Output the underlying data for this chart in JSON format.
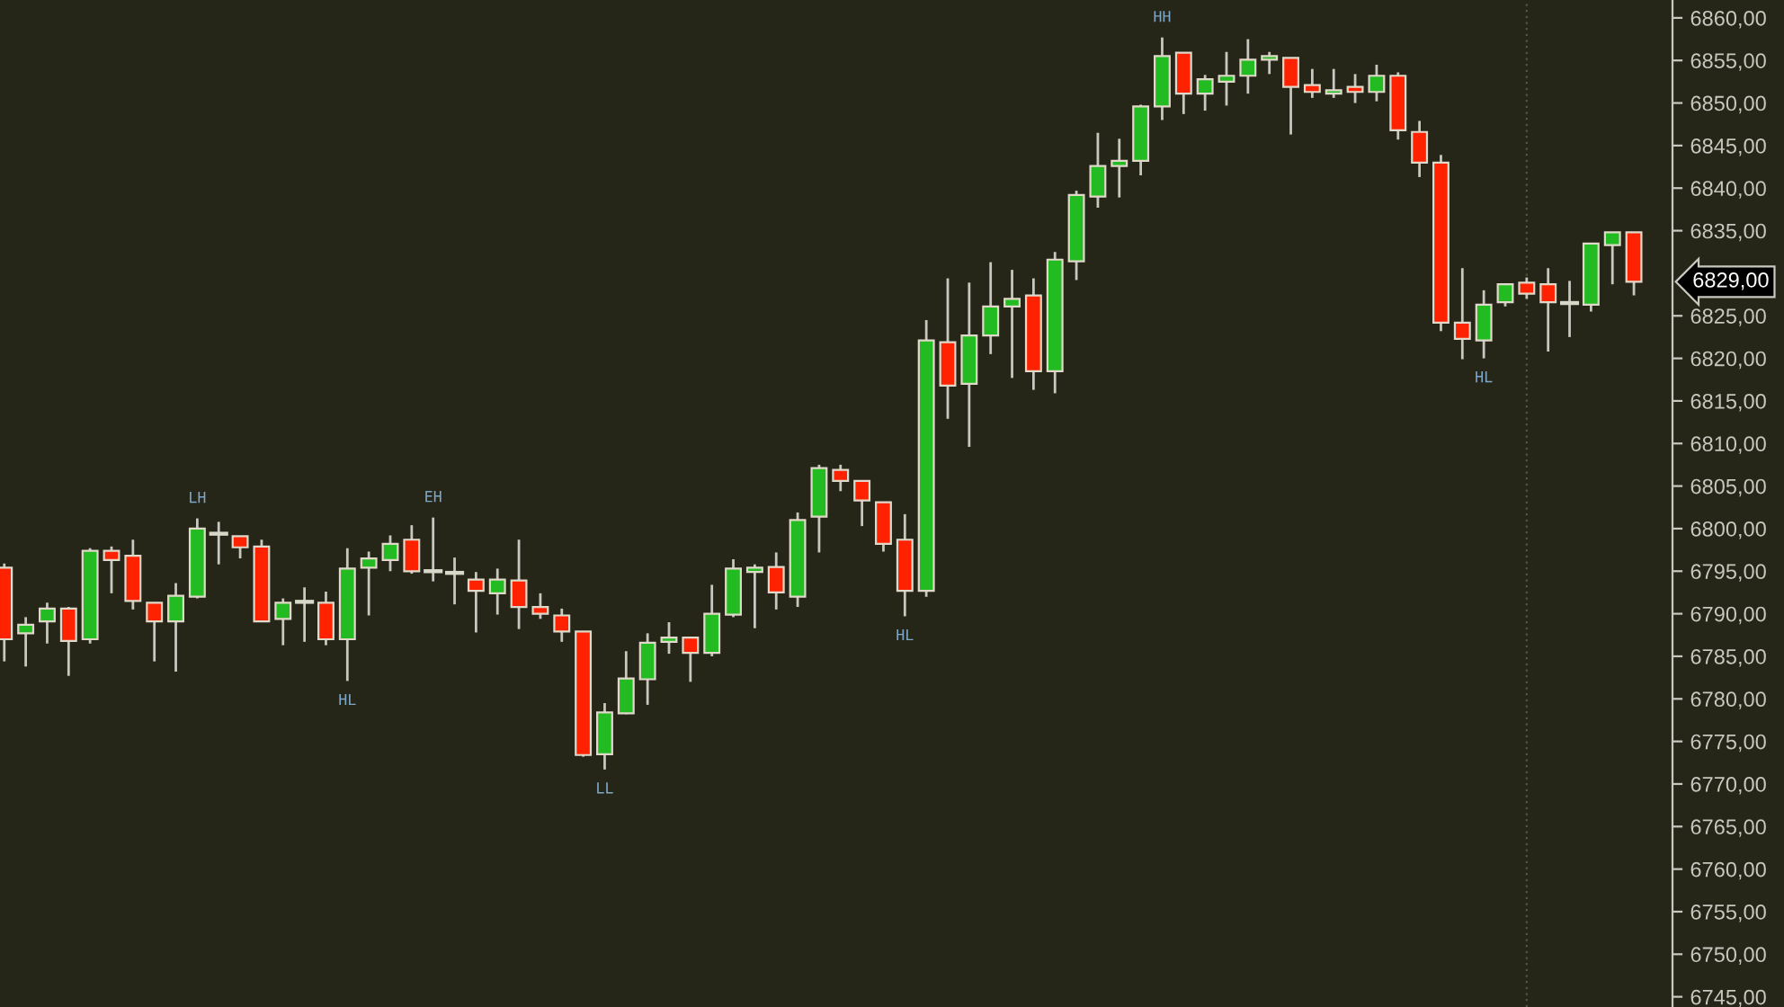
{
  "chart_data": {
    "type": "candlestick",
    "categories": [
      null,
      null,
      null,
      null,
      null,
      null,
      null,
      null,
      null,
      null,
      null,
      null,
      null,
      null,
      null,
      null,
      null,
      null,
      null,
      null,
      null,
      null,
      null,
      null,
      null,
      null,
      null,
      null,
      null,
      null,
      null,
      null,
      null,
      null,
      null,
      null,
      null,
      null,
      null,
      null,
      null,
      null,
      null,
      null,
      null,
      null,
      null,
      null,
      null,
      null,
      null,
      null,
      null,
      null,
      null,
      null,
      null,
      null,
      null,
      null,
      null,
      null,
      null,
      null,
      null,
      null,
      null,
      null,
      null,
      null,
      null,
      null,
      null,
      null,
      null,
      null,
      null
    ],
    "ohlc": [
      [
        6795.4,
        6795.9,
        6784.4,
        6787.0
      ],
      [
        6787.7,
        6789.6,
        6783.8,
        6788.7
      ],
      [
        6789.1,
        6791.3,
        6786.5,
        6790.6
      ],
      [
        6790.6,
        6790.8,
        6782.7,
        6786.8
      ],
      [
        6787.0,
        6797.7,
        6786.5,
        6797.4
      ],
      [
        6797.4,
        6797.9,
        6792.4,
        6796.3
      ],
      [
        6796.8,
        6798.7,
        6790.5,
        6791.5
      ],
      [
        6791.3,
        6791.3,
        6784.4,
        6789.1
      ],
      [
        6789.1,
        6793.6,
        6783.2,
        6792.1
      ],
      [
        6792.0,
        6801.2,
        6791.8,
        6800.0
      ],
      [
        6799.4,
        6800.8,
        6795.8,
        6799.4
      ],
      [
        6799.1,
        6799.1,
        6796.5,
        6797.8
      ],
      [
        6797.9,
        6798.7,
        6789.0,
        6789.1
      ],
      [
        6789.4,
        6791.8,
        6786.3,
        6791.3
      ],
      [
        6791.4,
        6793.1,
        6786.7,
        6791.4
      ],
      [
        6791.3,
        6792.6,
        6786.3,
        6787.0
      ],
      [
        6787.0,
        6797.7,
        6782.1,
        6795.3
      ],
      [
        6795.4,
        6797.3,
        6789.8,
        6796.5
      ],
      [
        6796.3,
        6799.2,
        6795.0,
        6798.2
      ],
      [
        6798.7,
        6800.4,
        6794.7,
        6795.0
      ],
      [
        6795.0,
        6801.3,
        6793.8,
        6795.0
      ],
      [
        6794.8,
        6796.6,
        6791.1,
        6794.8
      ],
      [
        6794.0,
        6794.9,
        6787.8,
        6792.7
      ],
      [
        6792.4,
        6795.3,
        6789.9,
        6794.0
      ],
      [
        6793.9,
        6798.7,
        6788.2,
        6790.8
      ],
      [
        6790.8,
        6792.4,
        6789.4,
        6790.0
      ],
      [
        6789.8,
        6790.6,
        6786.7,
        6787.9
      ],
      [
        6787.9,
        6787.9,
        6773.2,
        6773.4
      ],
      [
        6773.5,
        6779.5,
        6771.7,
        6778.4
      ],
      [
        6778.3,
        6785.6,
        6778.2,
        6782.4
      ],
      [
        6782.3,
        6787.7,
        6779.3,
        6786.6
      ],
      [
        6786.7,
        6789.0,
        6785.3,
        6787.2
      ],
      [
        6787.2,
        6787.2,
        6782.0,
        6785.4
      ],
      [
        6785.4,
        6793.4,
        6785.0,
        6790.0
      ],
      [
        6789.9,
        6796.4,
        6789.6,
        6795.3
      ],
      [
        6794.9,
        6795.8,
        6788.3,
        6795.4
      ],
      [
        6795.5,
        6797.2,
        6790.5,
        6792.5
      ],
      [
        6792.0,
        6801.9,
        6790.8,
        6801.0
      ],
      [
        6801.4,
        6807.5,
        6797.2,
        6807.1
      ],
      [
        6806.9,
        6807.5,
        6804.4,
        6805.6
      ],
      [
        6805.6,
        6805.6,
        6800.3,
        6803.3
      ],
      [
        6803.1,
        6803.1,
        6797.3,
        6798.2
      ],
      [
        6798.7,
        6801.7,
        6789.7,
        6792.7
      ],
      [
        6792.7,
        6824.5,
        6792.0,
        6822.1
      ],
      [
        6821.9,
        6829.4,
        6812.9,
        6816.8
      ],
      [
        6817.0,
        6828.9,
        6809.6,
        6822.7
      ],
      [
        6822.7,
        6831.3,
        6820.5,
        6826.1
      ],
      [
        6826.1,
        6830.4,
        6817.7,
        6827.0
      ],
      [
        6827.4,
        6829.4,
        6816.3,
        6818.5
      ],
      [
        6818.5,
        6832.5,
        6815.9,
        6831.6
      ],
      [
        6831.4,
        6839.7,
        6829.2,
        6839.2
      ],
      [
        6839.0,
        6846.5,
        6837.7,
        6842.6
      ],
      [
        6842.6,
        6845.8,
        6838.9,
        6843.2
      ],
      [
        6843.2,
        6849.8,
        6841.5,
        6849.6
      ],
      [
        6849.6,
        6857.7,
        6848.0,
        6855.5
      ],
      [
        6855.9,
        6855.9,
        6848.7,
        6851.1
      ],
      [
        6851.1,
        6853.3,
        6849.1,
        6852.8
      ],
      [
        6852.5,
        6856.0,
        6849.7,
        6853.2
      ],
      [
        6853.2,
        6857.5,
        6851.1,
        6855.1
      ],
      [
        6855.1,
        6856.0,
        6853.4,
        6855.5
      ],
      [
        6855.3,
        6855.3,
        6846.3,
        6851.9
      ],
      [
        6852.1,
        6854.0,
        6850.6,
        6851.3
      ],
      [
        6851.1,
        6854.0,
        6850.6,
        6851.5
      ],
      [
        6851.9,
        6853.4,
        6850.0,
        6851.3
      ],
      [
        6851.3,
        6854.5,
        6850.2,
        6853.2
      ],
      [
        6853.2,
        6853.6,
        6845.7,
        6846.8
      ],
      [
        6846.6,
        6847.9,
        6841.3,
        6843.0
      ],
      [
        6843.0,
        6843.9,
        6823.2,
        6824.2
      ],
      [
        6824.2,
        6830.6,
        6819.9,
        6822.3
      ],
      [
        6822.1,
        6828.0,
        6820.0,
        6826.3
      ],
      [
        6826.6,
        6828.7,
        6826.1,
        6828.7
      ],
      [
        6828.9,
        6829.5,
        6827.0,
        6827.6
      ],
      [
        6828.7,
        6830.6,
        6820.8,
        6826.6
      ],
      [
        6826.5,
        6829.1,
        6822.5,
        6826.5
      ],
      [
        6826.3,
        6833.5,
        6825.5,
        6833.5
      ],
      [
        6833.3,
        6834.8,
        6828.7,
        6834.8
      ],
      [
        6834.8,
        6834.8,
        6827.4,
        6829.0
      ]
    ],
    "colors": [
      "#ff2200",
      "#22bb22",
      "#22bb22",
      "#ff2200",
      "#22bb22",
      "#ff2200",
      "#ff2200",
      "#ff2200",
      "#22bb22",
      "#22bb22",
      "#d8d8c8",
      "#ff2200",
      "#ff2200",
      "#22bb22",
      "#d8d8c8",
      "#ff2200",
      "#22bb22",
      "#22bb22",
      "#22bb22",
      "#ff2200",
      "#d8d8c8",
      "#d8d8c8",
      "#ff2200",
      "#22bb22",
      "#ff2200",
      "#ff2200",
      "#ff2200",
      "#ff2200",
      "#22bb22",
      "#22bb22",
      "#22bb22",
      "#22bb22",
      "#ff2200",
      "#22bb22",
      "#22bb22",
      "#22bb22",
      "#ff2200",
      "#22bb22",
      "#22bb22",
      "#ff2200",
      "#ff2200",
      "#ff2200",
      "#ff2200",
      "#22bb22",
      "#ff2200",
      "#22bb22",
      "#22bb22",
      "#22bb22",
      "#ff2200",
      "#22bb22",
      "#22bb22",
      "#22bb22",
      "#22bb22",
      "#22bb22",
      "#22bb22",
      "#ff2200",
      "#22bb22",
      "#22bb22",
      "#22bb22",
      "#22bb22",
      "#ff2200",
      "#ff2200",
      "#22bb22",
      "#ff2200",
      "#22bb22",
      "#ff2200",
      "#ff2200",
      "#ff2200",
      "#ff2200",
      "#22bb22",
      "#22bb22",
      "#ff2200",
      "#ff2200",
      "#d8d8c8",
      "#22bb22",
      "#22bb22",
      "#ff2200"
    ],
    "ylim": [
      6743.8,
      6862.1
    ],
    "yticks": [
      {
        "value": 6745,
        "label": "6745,00"
      },
      {
        "value": 6750,
        "label": "6750,00"
      },
      {
        "value": 6755,
        "label": "6755,00"
      },
      {
        "value": 6760,
        "label": "6760,00"
      },
      {
        "value": 6765,
        "label": "6765,00"
      },
      {
        "value": 6770,
        "label": "6770,00"
      },
      {
        "value": 6775,
        "label": "6775,00"
      },
      {
        "value": 6780,
        "label": "6780,00"
      },
      {
        "value": 6785,
        "label": "6785,00"
      },
      {
        "value": 6790,
        "label": "6790,00"
      },
      {
        "value": 6795,
        "label": "6795,00"
      },
      {
        "value": 6800,
        "label": "6800,00"
      },
      {
        "value": 6805,
        "label": "6805,00"
      },
      {
        "value": 6810,
        "label": "6810,00"
      },
      {
        "value": 6815,
        "label": "6815,00"
      },
      {
        "value": 6820,
        "label": "6820,00"
      },
      {
        "value": 6825,
        "label": "6825,00"
      },
      {
        "value": 6835,
        "label": "6835,00"
      },
      {
        "value": 6840,
        "label": "6840,00"
      },
      {
        "value": 6845,
        "label": "6845,00"
      },
      {
        "value": 6850,
        "label": "6850,00"
      },
      {
        "value": 6855,
        "label": "6855,00"
      },
      {
        "value": 6860,
        "label": "6860,00"
      }
    ],
    "tick_labels": "y",
    "grid": false,
    "annotations": [
      {
        "text": "LH",
        "y": 6801.2
      },
      {
        "text": "HL",
        "y": 6782.1
      },
      {
        "text": "EH",
        "y": 6801.3
      },
      {
        "text": "LL",
        "y": 6771.7
      },
      {
        "text": "HL",
        "y": 6789.7
      },
      {
        "text": "HH",
        "y": 6857.7
      },
      {
        "text": "HL",
        "y": 6820.0
      },
      "6829,00"
    ]
  }
}
